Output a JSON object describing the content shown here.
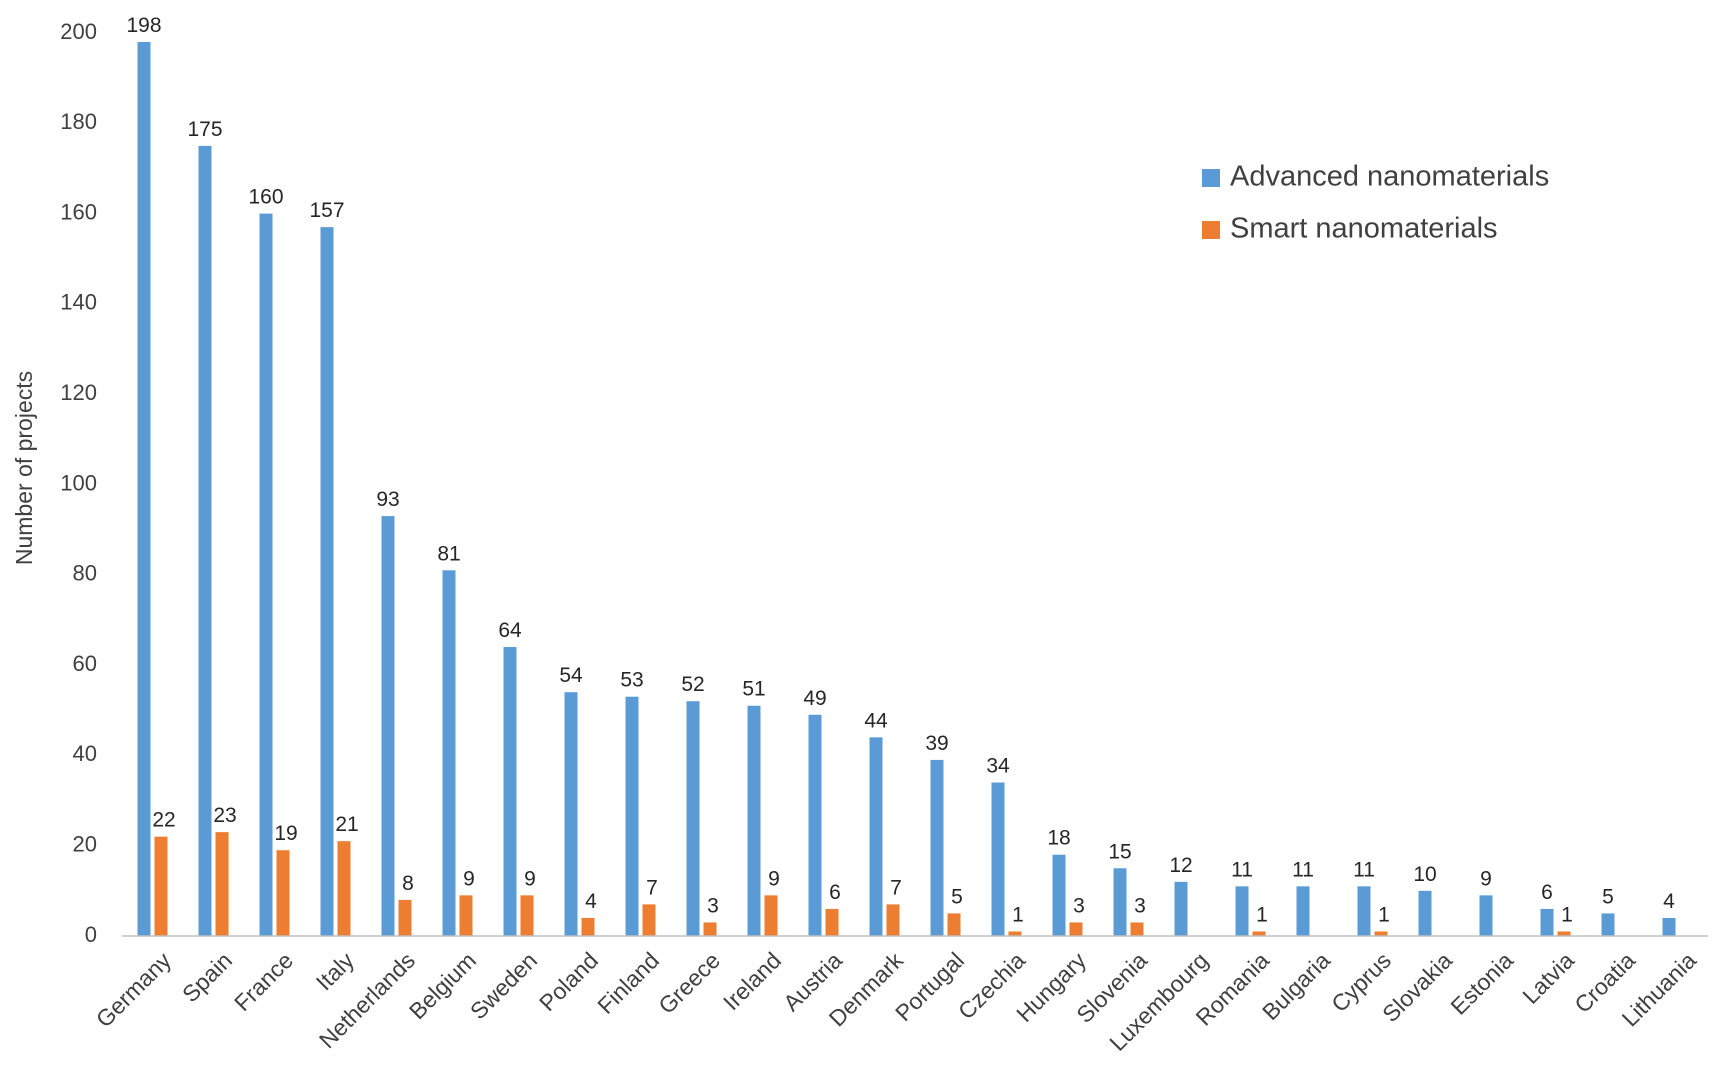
{
  "chart_data": {
    "type": "bar",
    "title": "",
    "xlabel": "",
    "ylabel": "Number of projects",
    "ylim": [
      0,
      200
    ],
    "yticks": [
      0,
      20,
      40,
      60,
      80,
      100,
      120,
      140,
      160,
      180,
      200
    ],
    "grid": false,
    "legend_position": "top-right",
    "categories": [
      "Germany",
      "Spain",
      "France",
      "Italy",
      "Netherlands",
      "Belgium",
      "Sweden",
      "Poland",
      "Finland",
      "Greece",
      "Ireland",
      "Austria",
      "Denmark",
      "Portugal",
      "Czechia",
      "Hungary",
      "Slovenia",
      "Luxembourg",
      "Romania",
      "Bulgaria",
      "Cyprus",
      "Slovakia",
      "Estonia",
      "Latvia",
      "Croatia",
      "Lithuania"
    ],
    "series": [
      {
        "name": "Advanced nanomaterials",
        "color": "#5b9bd5",
        "values": [
          198,
          175,
          160,
          157,
          93,
          81,
          64,
          54,
          53,
          52,
          51,
          49,
          44,
          39,
          34,
          18,
          15,
          12,
          11,
          11,
          11,
          10,
          9,
          6,
          5,
          4
        ]
      },
      {
        "name": "Smart nanomaterials",
        "color": "#ed7d31",
        "values": [
          22,
          23,
          19,
          21,
          8,
          9,
          9,
          4,
          7,
          3,
          9,
          6,
          7,
          5,
          1,
          3,
          3,
          null,
          1,
          null,
          1,
          null,
          null,
          1,
          null,
          null
        ]
      }
    ]
  }
}
